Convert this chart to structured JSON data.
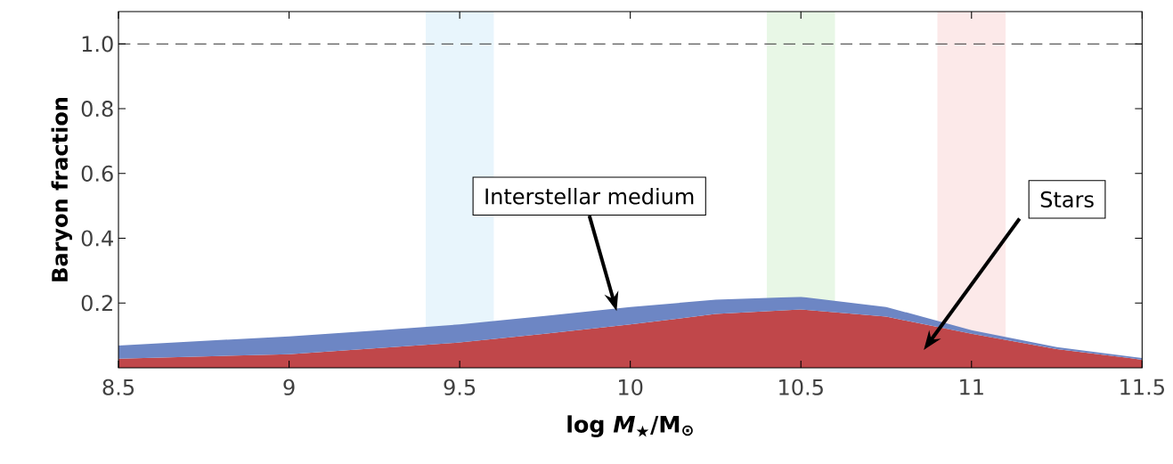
{
  "chart_data": {
    "type": "area",
    "stacked": true,
    "ylabel": "Baryon fraction",
    "xlabel": "**log *M*$_{★}$/M$_{⊙}$**",
    "x": [
      8.5,
      8.75,
      9,
      9.25,
      9.5,
      9.75,
      10,
      10.25,
      10.5,
      10.75,
      11,
      11.25,
      11.5
    ],
    "series": [
      {
        "name": "Stars",
        "color": "#c0474a",
        "values": [
          0.028,
          0.035,
          0.042,
          0.06,
          0.078,
          0.105,
          0.134,
          0.166,
          0.18,
          0.158,
          0.105,
          0.058,
          0.025
        ]
      },
      {
        "name": "Interstellar medium",
        "color": "#6d86c4",
        "values": [
          0.041,
          0.048,
          0.055,
          0.055,
          0.056,
          0.055,
          0.054,
          0.044,
          0.039,
          0.03,
          0.011,
          0.006,
          0.005
        ]
      }
    ],
    "xlim": [
      8.5,
      11.5
    ],
    "ylim": [
      0,
      1.1
    ],
    "xticks": [
      8.5,
      9,
      9.5,
      10,
      10.5,
      11,
      11.5
    ],
    "yticks": [
      0.2,
      0.4,
      0.6,
      {
        "value": 0.8,
        "label": "0.8"
      },
      {
        "value": 1,
        "label": "1.0"
      }
    ],
    "ref_lines": [
      {
        "axis": "y",
        "value": 1,
        "color": "#555555",
        "line_style": "dashed"
      }
    ],
    "bands": [
      {
        "axis": "x",
        "from": 9.4,
        "to": 9.6,
        "color": "#e8f5fc"
      },
      {
        "axis": "x",
        "from": 10.4,
        "to": 10.6,
        "color": "#e8f7e6"
      },
      {
        "axis": "x",
        "from": 10.9,
        "to": 11.1,
        "color": "#fce9e9"
      }
    ],
    "legend": false,
    "grid": false
  }
}
